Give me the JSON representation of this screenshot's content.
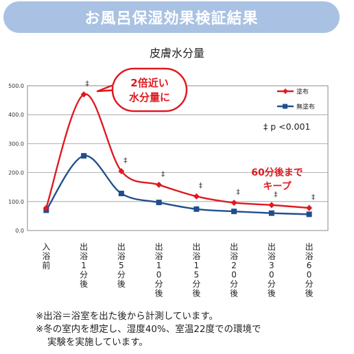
{
  "banner": {
    "title": "お風呂保湿効果検証結果"
  },
  "chart_data": {
    "type": "line",
    "title": "皮膚水分量",
    "categories": [
      "入浴前",
      "出浴1分後",
      "出浴5分後",
      "出浴10分後",
      "出浴15分後",
      "出浴20分後",
      "出浴30分後",
      "出浴60分後"
    ],
    "y_tick_labels": [
      "0.0",
      "100.0",
      "200.0",
      "300.0",
      "400.0",
      "500.0"
    ],
    "ylim": [
      0,
      500
    ],
    "grid": true,
    "legend_position": "top-right",
    "series": [
      {
        "name": "塗布",
        "color": "#e0191f",
        "values": [
          78,
          470,
          205,
          158,
          118,
          96,
          88,
          78
        ]
      },
      {
        "name": "無塗布",
        "color": "#1f4e8c",
        "values": [
          70,
          258,
          128,
          97,
          74,
          66,
          60,
          56
        ]
      }
    ],
    "significance_mark": "‡",
    "significance_text": "‡ p <0.001",
    "callout_peak": [
      "2倍近い",
      "水分量に"
    ],
    "callout_keep": [
      "60分後まで",
      "キープ"
    ]
  },
  "notes": [
    "※出浴＝浴室を出た後から計測しています。",
    "※冬の室内を想定し、湿度40%、室温22度での環境で",
    "実験を実施しています。"
  ]
}
